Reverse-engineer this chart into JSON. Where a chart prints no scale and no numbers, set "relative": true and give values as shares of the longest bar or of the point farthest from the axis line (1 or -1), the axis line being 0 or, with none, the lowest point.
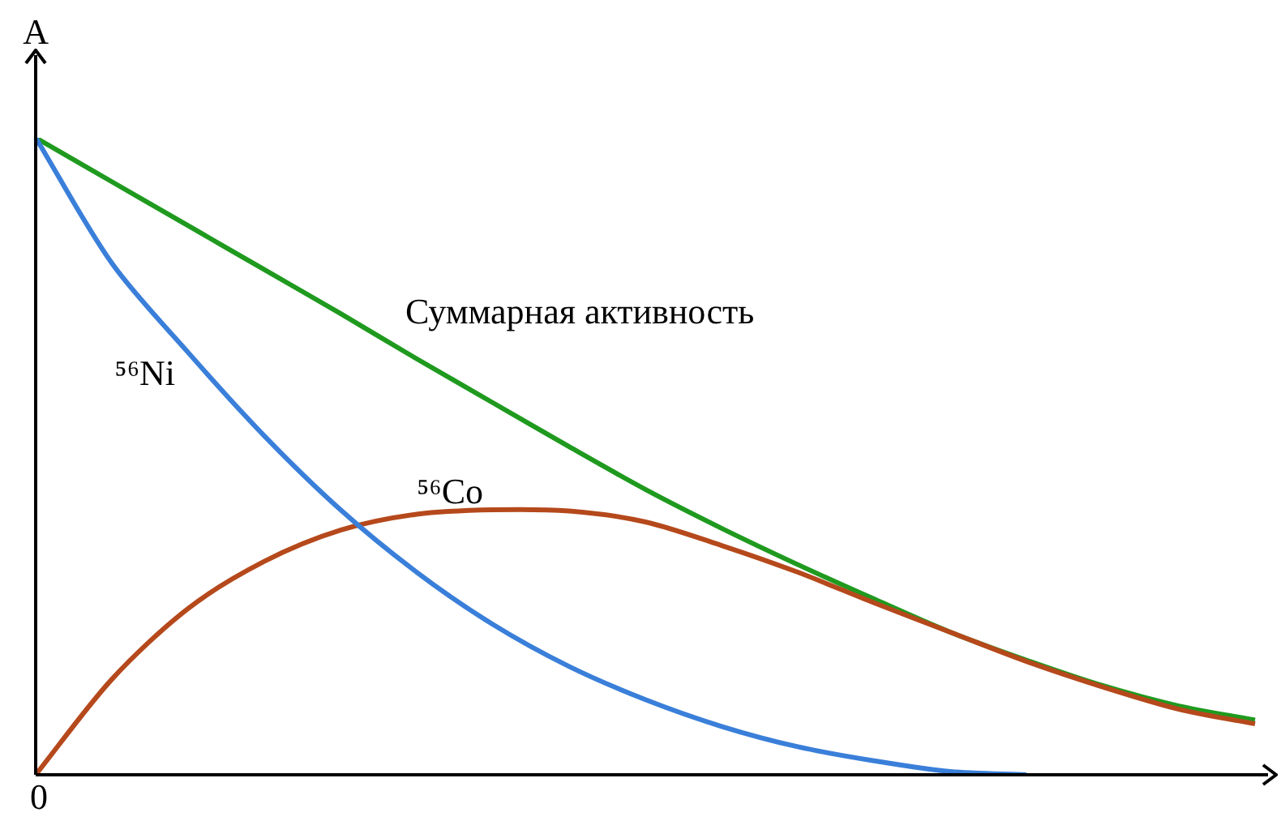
{
  "chart_data": {
    "type": "line",
    "relative": true,
    "ylabel": "A",
    "annotations": [
      "0"
    ],
    "legend": false,
    "marker": "none",
    "line_style": "solid",
    "categories": [
      null,
      null,
      null,
      null,
      null,
      null,
      null,
      null,
      null,
      null,
      null,
      null,
      null,
      null,
      null,
      null,
      null
    ],
    "series": [
      {
        "name": "⁵⁶Ni",
        "color": "#3a7fd9",
        "values": [
          1,
          0.803,
          0.663,
          0.532,
          0.416,
          0.318,
          0.236,
          0.17,
          0.118,
          0.076,
          0.044,
          0.022,
          0.005,
          0,
          null,
          null,
          null
        ]
      },
      {
        "name": "⁵⁶Co",
        "color": "#b5491c",
        "values": [
          0,
          0.15,
          0.261,
          0.335,
          0.384,
          0.409,
          0.416,
          0.414,
          0.397,
          0.36,
          0.318,
          0.27,
          0.224,
          0.178,
          0.138,
          0.103,
          0.08
        ]
      },
      {
        "name": "Суммарная активность",
        "color": "#1f9a1f",
        "values": [
          1,
          0.931,
          0.862,
          0.793,
          0.724,
          0.653,
          0.584,
          0.515,
          0.448,
          0.387,
          0.33,
          0.276,
          0.224,
          0.18,
          0.14,
          0.108,
          0.086
        ]
      }
    ]
  }
}
